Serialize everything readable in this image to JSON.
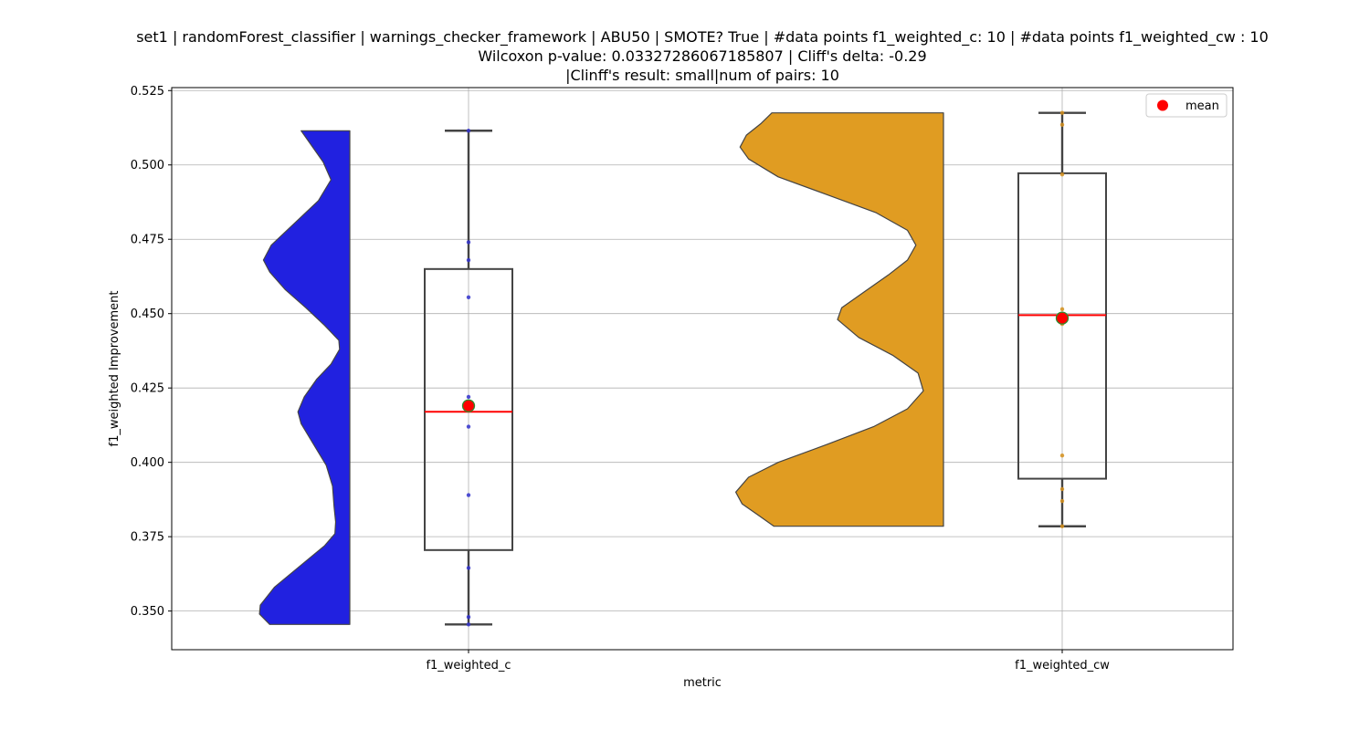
{
  "chart_data": {
    "type": "violin-box",
    "title_lines": [
      "set1 | randomForest_classifier | warnings_checker_framework | ABU50 | SMOTE? True | #data points f1_weighted_c: 10 | #data points f1_weighted_cw : 10",
      "Wilcoxon p-value: 0.03327286067185807 | Cliff's delta: -0.29",
      "|Clinff's result: small|num of pairs: 10"
    ],
    "xlabel": "metric",
    "ylabel": "f1_weighted Improvement",
    "ylim": [
      0.337,
      0.526
    ],
    "yticks": [
      0.35,
      0.375,
      0.4,
      0.425,
      0.45,
      0.475,
      0.5,
      0.525
    ],
    "ytick_labels": [
      "0.350",
      "0.375",
      "0.400",
      "0.425",
      "0.450",
      "0.475",
      "0.500",
      "0.525"
    ],
    "grid": true,
    "legend": {
      "position": "top-right",
      "entries": [
        {
          "label": "mean",
          "color": "#ff0000",
          "marker": "circle"
        }
      ]
    },
    "categories": [
      "f1_weighted_c",
      "f1_weighted_cw"
    ],
    "series": [
      {
        "name": "f1_weighted_c",
        "violin_color": "#2121e0",
        "point_color": "#3333cc",
        "box": {
          "whisker_low": 0.3455,
          "q1": 0.3705,
          "median": 0.417,
          "q3": 0.465,
          "whisker_high": 0.5115
        },
        "mean": 0.419,
        "points": [
          0.5115,
          0.474,
          0.468,
          0.4555,
          0.422,
          0.412,
          0.389,
          0.3645,
          0.348,
          0.3455
        ],
        "density": [
          [
            0.3455,
            0.51
          ],
          [
            0.349,
            0.575
          ],
          [
            0.352,
            0.57
          ],
          [
            0.358,
            0.48
          ],
          [
            0.365,
            0.32
          ],
          [
            0.372,
            0.16
          ],
          [
            0.376,
            0.095
          ],
          [
            0.38,
            0.09
          ],
          [
            0.385,
            0.1
          ],
          [
            0.392,
            0.11
          ],
          [
            0.399,
            0.15
          ],
          [
            0.406,
            0.23
          ],
          [
            0.413,
            0.31
          ],
          [
            0.417,
            0.33
          ],
          [
            0.422,
            0.29
          ],
          [
            0.428,
            0.21
          ],
          [
            0.433,
            0.12
          ],
          [
            0.438,
            0.065
          ],
          [
            0.441,
            0.07
          ],
          [
            0.446,
            0.16
          ],
          [
            0.452,
            0.28
          ],
          [
            0.458,
            0.41
          ],
          [
            0.464,
            0.51
          ],
          [
            0.468,
            0.55
          ],
          [
            0.473,
            0.5
          ],
          [
            0.48,
            0.36
          ],
          [
            0.488,
            0.2
          ],
          [
            0.495,
            0.12
          ],
          [
            0.501,
            0.17
          ],
          [
            0.507,
            0.25
          ],
          [
            0.5115,
            0.31
          ]
        ]
      },
      {
        "name": "f1_weighted_cw",
        "violin_color": "#e09c22",
        "point_color": "#d58f1b",
        "box": {
          "whisker_low": 0.3785,
          "q1": 0.3945,
          "median": 0.4495,
          "q3": 0.4972,
          "whisker_high": 0.5175
        },
        "mean": 0.4485,
        "points": [
          0.5175,
          0.5135,
          0.4968,
          0.4515,
          0.4495,
          0.4465,
          0.4023,
          0.391,
          0.387,
          0.3785
        ],
        "density": [
          [
            0.3785,
            0.8
          ],
          [
            0.382,
            0.87
          ],
          [
            0.386,
            0.95
          ],
          [
            0.39,
            0.98
          ],
          [
            0.395,
            0.92
          ],
          [
            0.4,
            0.78
          ],
          [
            0.406,
            0.55
          ],
          [
            0.412,
            0.33
          ],
          [
            0.418,
            0.17
          ],
          [
            0.424,
            0.095
          ],
          [
            0.43,
            0.12
          ],
          [
            0.436,
            0.24
          ],
          [
            0.442,
            0.4
          ],
          [
            0.448,
            0.5
          ],
          [
            0.452,
            0.48
          ],
          [
            0.457,
            0.38
          ],
          [
            0.463,
            0.26
          ],
          [
            0.468,
            0.17
          ],
          [
            0.473,
            0.13
          ],
          [
            0.478,
            0.17
          ],
          [
            0.484,
            0.32
          ],
          [
            0.49,
            0.55
          ],
          [
            0.496,
            0.78
          ],
          [
            0.502,
            0.92
          ],
          [
            0.506,
            0.96
          ],
          [
            0.51,
            0.93
          ],
          [
            0.514,
            0.86
          ],
          [
            0.5175,
            0.81
          ]
        ]
      }
    ]
  }
}
